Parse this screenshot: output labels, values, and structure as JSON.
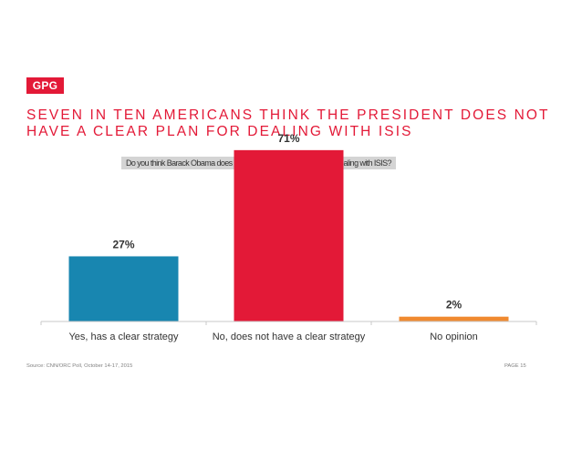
{
  "brand": {
    "logo_text": "GPG",
    "accent_color": "#e31937"
  },
  "slide": {
    "title": "SEVEN IN TEN AMERICANS THINK THE PRESIDENT DOES NOT\nHAVE A CLEAR PLAN FOR DEALING WITH ISIS",
    "question": "Do you think Barack Obama does or does not have a clear plan for dealing with ISIS?"
  },
  "chart_data": {
    "type": "bar",
    "categories": [
      "Yes, has a clear strategy",
      "No, does not have a clear strategy",
      "No opinion"
    ],
    "values": [
      27,
      71,
      2
    ],
    "data_labels": [
      "27%",
      "71%",
      "2%"
    ],
    "colors": [
      "#1886b0",
      "#e31937",
      "#f08a30"
    ],
    "title": "",
    "xlabel": "",
    "ylabel": "",
    "ylim": [
      0,
      100
    ],
    "grid": false
  },
  "footer": {
    "source": "Source: CNN/ORC Poll, October 14-17, 2015",
    "page": "PAGE 15"
  }
}
